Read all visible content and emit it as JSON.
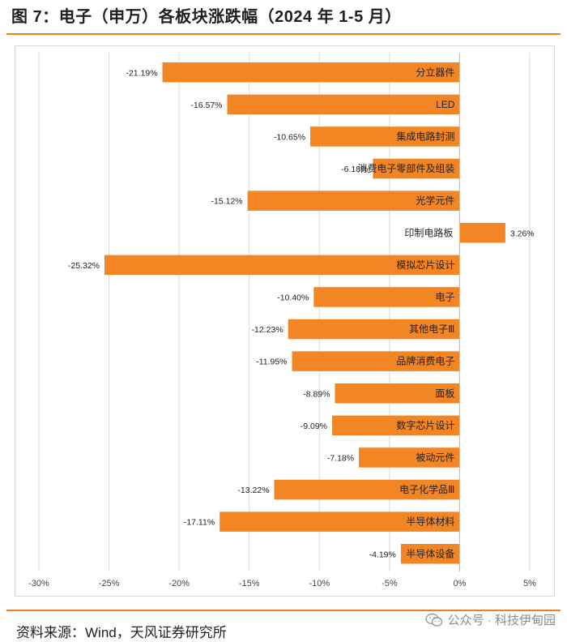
{
  "header": {
    "title": "图 7：电子（申万）各板块涨跌幅（2024 年 1-5 月）"
  },
  "footer": {
    "source": "资料来源：Wind，天风证券研究所"
  },
  "watermark": {
    "text": "公众号 · 科技伊甸园",
    "icon": "wechat-icon"
  },
  "colors": {
    "bar": "#f28524",
    "accent": "#ee7f1d",
    "grid": "#d9d9d9",
    "text": "#333333"
  },
  "chart_data": {
    "type": "bar",
    "orientation": "horizontal",
    "title": "电子（申万）各板块涨跌幅（2024 年 1-5 月）",
    "xlabel": "",
    "ylabel": "",
    "xlim": [
      -30,
      5
    ],
    "xticks": [
      -30,
      -25,
      -20,
      -15,
      -10,
      -5,
      0,
      5
    ],
    "xtick_labels": [
      "-30%",
      "-25%",
      "-20%",
      "-15%",
      "-10%",
      "-5%",
      "0%",
      "5%"
    ],
    "grid": "vertical",
    "categories": [
      "分立器件",
      "LED",
      "集成电路封测",
      "消费电子零部件及组装",
      "光学元件",
      "印制电路板",
      "模拟芯片设计",
      "电子",
      "其他电子Ⅲ",
      "品牌消费电子",
      "面板",
      "数字芯片设计",
      "被动元件",
      "电子化学品Ⅲ",
      "半导体材料",
      "半导体设备"
    ],
    "values": [
      -21.19,
      -16.57,
      -10.65,
      -6.18,
      -15.12,
      3.26,
      -25.32,
      -10.4,
      -12.23,
      -11.95,
      -8.89,
      -9.09,
      -7.18,
      -13.22,
      -17.11,
      -4.19
    ],
    "value_labels": [
      "-21.19%",
      "-16.57%",
      "-10.65%",
      "-6.18%",
      "-15.12%",
      "3.26%",
      "-25.32%",
      "-10.40%",
      "-12.23%",
      "-11.95%",
      "-8.89%",
      "-9.09%",
      "-7.18%",
      "-13.22%",
      "-17.11%",
      "-4.19%"
    ]
  }
}
